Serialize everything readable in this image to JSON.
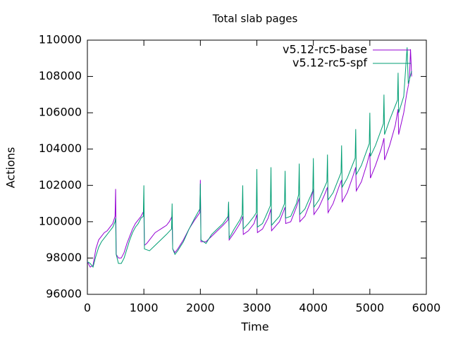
{
  "chart_data": {
    "type": "line",
    "title": "Total slab pages",
    "xlabel": "Time",
    "ylabel": "Actions",
    "xlim": [
      0,
      6000
    ],
    "xticks": [
      0,
      1000,
      2000,
      3000,
      4000,
      5000,
      6000
    ],
    "ylim": [
      96000,
      110000
    ],
    "yticks": [
      96000,
      98000,
      100000,
      102000,
      104000,
      106000,
      108000,
      110000
    ],
    "grid": false,
    "legend": "top-right",
    "series": [
      {
        "name": "v5.12-rc5-base",
        "color": "#9400d3",
        "x": [
          0,
          50,
          100,
          150,
          200,
          250,
          300,
          350,
          400,
          450,
          490,
          500,
          510,
          550,
          600,
          650,
          700,
          750,
          800,
          850,
          900,
          950,
          1000,
          1010,
          1050,
          1100,
          1150,
          1200,
          1250,
          1300,
          1350,
          1400,
          1450,
          1500,
          1510,
          1550,
          1600,
          1700,
          1800,
          1900,
          1990,
          2000,
          2010,
          2100,
          2200,
          2300,
          2400,
          2490,
          2500,
          2510,
          2600,
          2700,
          2750,
          2760,
          2850,
          2950,
          3000,
          3010,
          3100,
          3200,
          3250,
          3260,
          3400,
          3500,
          3510,
          3600,
          3700,
          3750,
          3760,
          3850,
          3950,
          4000,
          4010,
          4100,
          4200,
          4250,
          4260,
          4350,
          4450,
          4500,
          4510,
          4600,
          4700,
          4750,
          4760,
          4850,
          4950,
          5000,
          5010,
          5100,
          5200,
          5250,
          5260,
          5350,
          5450,
          5500,
          5510,
          5600,
          5650,
          5700,
          5720,
          5740
        ],
        "values": [
          97800,
          97500,
          97600,
          98500,
          99000,
          99200,
          99400,
          99500,
          99700,
          99900,
          100300,
          101800,
          98200,
          98000,
          98000,
          98300,
          98800,
          99200,
          99600,
          99900,
          100100,
          100300,
          100600,
          98700,
          98800,
          99000,
          99200,
          99400,
          99500,
          99600,
          99700,
          99800,
          100000,
          100300,
          98500,
          98300,
          98500,
          99000,
          99600,
          100100,
          100500,
          102300,
          98900,
          98900,
          99200,
          99500,
          99800,
          100100,
          101000,
          99000,
          99400,
          99900,
          100300,
          99300,
          99500,
          99900,
          100400,
          99400,
          99600,
          100200,
          100700,
          99500,
          100000,
          100800,
          99900,
          100000,
          100800,
          101300,
          100000,
          100300,
          101100,
          101800,
          100400,
          100800,
          101500,
          101900,
          100500,
          101000,
          101900,
          102300,
          101100,
          101600,
          102500,
          103000,
          101700,
          102200,
          103200,
          103800,
          102400,
          103100,
          104000,
          104600,
          103400,
          104200,
          105300,
          106200,
          104800,
          106000,
          107000,
          107800,
          109500,
          108000
        ]
      },
      {
        "name": "v5.12-rc5-spf",
        "color": "#009e73",
        "x": [
          0,
          50,
          100,
          150,
          200,
          250,
          300,
          350,
          400,
          450,
          490,
          500,
          510,
          550,
          600,
          650,
          700,
          750,
          800,
          850,
          900,
          950,
          990,
          1000,
          1010,
          1100,
          1200,
          1300,
          1400,
          1490,
          1500,
          1510,
          1550,
          1600,
          1700,
          1800,
          1900,
          1990,
          2000,
          2010,
          2100,
          2200,
          2300,
          2400,
          2490,
          2500,
          2510,
          2600,
          2700,
          2740,
          2750,
          2760,
          2850,
          2950,
          2990,
          3000,
          3010,
          3100,
          3200,
          3240,
          3250,
          3260,
          3400,
          3490,
          3500,
          3510,
          3600,
          3700,
          3740,
          3750,
          3760,
          3850,
          3990,
          4000,
          4010,
          4100,
          4240,
          4250,
          4260,
          4350,
          4490,
          4500,
          4510,
          4600,
          4740,
          4750,
          4760,
          4850,
          4990,
          5000,
          5010,
          5100,
          5240,
          5250,
          5260,
          5350,
          5490,
          5500,
          5510,
          5600,
          5660,
          5680,
          5740
        ],
        "values": [
          97800,
          97700,
          97500,
          98100,
          98600,
          98900,
          99100,
          99300,
          99500,
          99700,
          100000,
          100200,
          98200,
          97700,
          97700,
          98000,
          98500,
          99000,
          99400,
          99700,
          99900,
          100200,
          100300,
          102000,
          98500,
          98400,
          98700,
          99000,
          99300,
          99600,
          101000,
          98500,
          98200,
          98400,
          98900,
          99600,
          100200,
          100700,
          102100,
          99000,
          98800,
          99300,
          99600,
          99900,
          100300,
          101100,
          99100,
          99600,
          100100,
          100400,
          102000,
          99600,
          99900,
          100300,
          100500,
          102900,
          99700,
          99900,
          100600,
          100900,
          103000,
          99800,
          100300,
          101000,
          102800,
          100200,
          100300,
          101000,
          101500,
          103200,
          100400,
          100700,
          101700,
          103500,
          100800,
          101200,
          102200,
          103700,
          101200,
          101600,
          102700,
          104200,
          101900,
          102400,
          103500,
          105100,
          102600,
          103100,
          104300,
          106000,
          103600,
          104200,
          105400,
          107000,
          104800,
          105600,
          106700,
          108200,
          106000,
          106900,
          109600,
          107600,
          108300
        ]
      }
    ]
  }
}
